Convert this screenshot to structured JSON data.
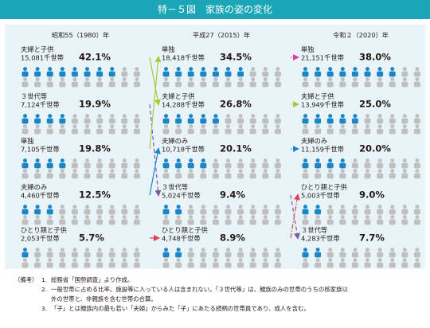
{
  "title": "特－５図　家族の姿の変化",
  "colors": {
    "title_bg": "#1aa6b7",
    "panel_bg": "#e9f4f8",
    "person_blue": "#1b86c6",
    "person_grey": "#bfbfbf",
    "arrow_yellowgreen": "#a9c93a",
    "arrow_purple": "#7b5aa6",
    "arrow_blue": "#1b86c6",
    "arrow_red": "#e04050",
    "arrow_pink": "#e0409a"
  },
  "chart_data": {
    "type": "pictograph",
    "unit": "千世帯",
    "icons_per_row": 10,
    "columns": [
      {
        "year_label": "昭和55（1980）年",
        "items": [
          {
            "name": "夫婦と子供",
            "households": "15,081千世帯",
            "pct": "42.1%",
            "value": 42.1
          },
          {
            "name": "３世代等",
            "households": "7,124千世帯",
            "pct": "19.9%",
            "value": 19.9
          },
          {
            "name": "単独",
            "households": "7,105千世帯",
            "pct": "19.8%",
            "value": 19.8
          },
          {
            "name": "夫婦のみ",
            "households": "4,460千世帯",
            "pct": "12.5%",
            "value": 12.5
          },
          {
            "name": "ひとり親と子供",
            "households": "2,053千世帯",
            "pct": "5.7%",
            "value": 5.7
          }
        ]
      },
      {
        "year_label": "平成27（2015）年",
        "items": [
          {
            "name": "単独",
            "households": "18,418千世帯",
            "pct": "34.5%",
            "value": 34.5
          },
          {
            "name": "夫婦と子供",
            "households": "14,288千世帯",
            "pct": "26.8%",
            "value": 26.8
          },
          {
            "name": "夫婦のみ",
            "households": "10,718千世帯",
            "pct": "20.1%",
            "value": 20.1
          },
          {
            "name": "３世代等",
            "households": "5,024千世帯",
            "pct": "9.4%",
            "value": 9.4
          },
          {
            "name": "ひとり親と子供",
            "households": "4,748千世帯",
            "pct": "8.9%",
            "value": 8.9
          }
        ]
      },
      {
        "year_label": "令和２（2020）年",
        "items": [
          {
            "name": "単独",
            "households": "21,151千世帯",
            "pct": "38.0%",
            "value": 38.0
          },
          {
            "name": "夫婦と子供",
            "households": "13,949千世帯",
            "pct": "25.0%",
            "value": 25.0
          },
          {
            "name": "夫婦のみ",
            "households": "11,159千世帯",
            "pct": "20.0%",
            "value": 20.0
          },
          {
            "name": "ひとり親と子供",
            "households": "5,003千世帯",
            "pct": "9.0%",
            "value": 9.0
          },
          {
            "name": "３世代等",
            "households": "4,283千世帯",
            "pct": "7.7%",
            "value": 7.7
          }
        ]
      }
    ],
    "links": [
      {
        "from": [
          0,
          0
        ],
        "to": [
          1,
          1
        ],
        "style": "solid",
        "color": "arrow_yellowgreen"
      },
      {
        "from": [
          0,
          1
        ],
        "to": [
          1,
          3
        ],
        "style": "dashed",
        "color": "arrow_purple"
      },
      {
        "from": [
          0,
          2
        ],
        "to": [
          1,
          0
        ],
        "style": "solid",
        "color": "arrow_yellowgreen"
      },
      {
        "from": [
          0,
          3
        ],
        "to": [
          1,
          2
        ],
        "style": "solid",
        "color": "arrow_blue"
      },
      {
        "from": [
          0,
          4
        ],
        "to": [
          1,
          4
        ],
        "style": "dashdot",
        "color": "arrow_red"
      },
      {
        "from": [
          1,
          0
        ],
        "to": [
          2,
          0
        ],
        "style": "dotted",
        "color": "arrow_pink"
      },
      {
        "from": [
          1,
          1
        ],
        "to": [
          2,
          1
        ],
        "style": "dotted",
        "color": "arrow_yellowgreen"
      },
      {
        "from": [
          1,
          2
        ],
        "to": [
          2,
          2
        ],
        "style": "dotted",
        "color": "arrow_blue"
      },
      {
        "from": [
          1,
          3
        ],
        "to": [
          2,
          4
        ],
        "style": "dashed",
        "color": "arrow_purple"
      },
      {
        "from": [
          1,
          4
        ],
        "to": [
          2,
          3
        ],
        "style": "dashdot",
        "color": "arrow_red"
      }
    ]
  },
  "notes": {
    "lead": "（備考）",
    "items": [
      {
        "num": "1.",
        "text": "総務省「国勢調査」より作成。"
      },
      {
        "num": "2.",
        "text": "一般世帯に占める比率。施設等に入っている人は含まれない。「３世代等」は、親族のみの世帯のうちの核家族以"
      },
      {
        "num": "",
        "text": "外の世帯と、非親族を含む世帯の合算。"
      },
      {
        "num": "3.",
        "text": "「子」とは親族内の最も若い「夫婦」からみた「子」にあたる続柄の世帯員であり、成人を含む。"
      }
    ]
  }
}
